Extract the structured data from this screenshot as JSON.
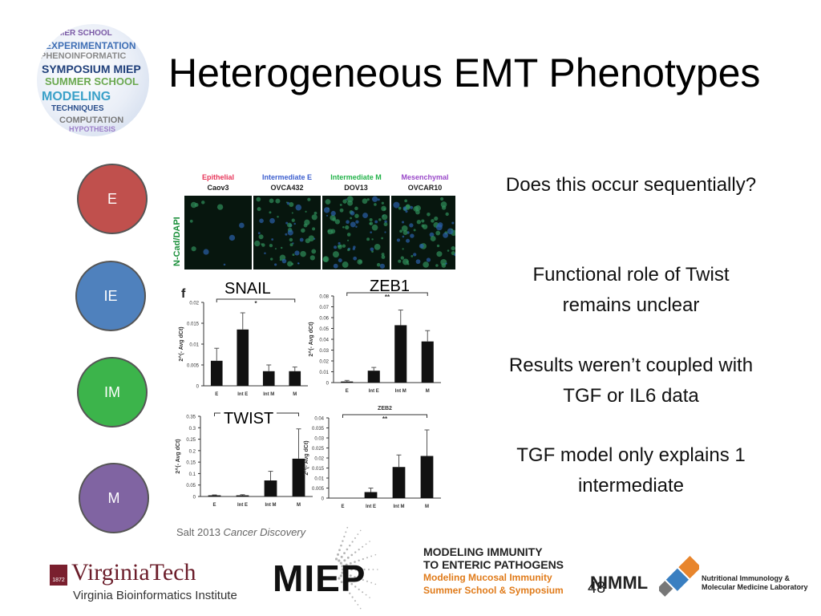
{
  "title": "Heterogeneous EMT Phenotypes",
  "globe_logo": {
    "words": [
      "MER SCHOOL",
      "EXPERIMENTATION",
      "PHENOINFORMATIC",
      "SYMPOSIUM MIEP",
      "SUMMER SCHOOL",
      "MODELING",
      "TECHNIQUES",
      "COMPUTATION",
      "HYPOTHESIS"
    ]
  },
  "states": [
    {
      "label": "E",
      "color": "#c0504d"
    },
    {
      "label": "IE",
      "color": "#4f81bd"
    },
    {
      "label": "IM",
      "color": "#3cb44b"
    },
    {
      "label": "M",
      "color": "#8064a2"
    }
  ],
  "microscopy": {
    "ylabel": "N-Cad/DAPI",
    "columns": [
      {
        "name": "Epithelial",
        "line": "Caov3",
        "color": "#e8365a"
      },
      {
        "name": "Intermediate E",
        "line": "OVCA432",
        "color": "#3d5fcf"
      },
      {
        "name": "Intermediate M",
        "line": "DOV13",
        "color": "#23b34a"
      },
      {
        "name": "Mesenchymal",
        "line": "OVCAR10",
        "color": "#9a49c9"
      }
    ]
  },
  "chart_data": [
    {
      "type": "bar",
      "title": "SNAIL",
      "panel_label": "f",
      "categories": [
        "E",
        "Int E",
        "Int M",
        "M"
      ],
      "values": [
        0.006,
        0.0135,
        0.0035,
        0.0035
      ],
      "errors": [
        0.003,
        0.004,
        0.0015,
        0.001
      ],
      "ylabel": "2^(- Avg dCt)",
      "ylim": [
        0,
        0.02
      ],
      "yticks": [
        "0",
        "0.005",
        "0.01",
        "0.015",
        "0.02"
      ],
      "significance": "*"
    },
    {
      "type": "bar",
      "title": "ZEB1",
      "categories": [
        "E",
        "Int E",
        "Int M",
        "M"
      ],
      "values": [
        0.001,
        0.011,
        0.053,
        0.038
      ],
      "errors": [
        0.001,
        0.003,
        0.014,
        0.01
      ],
      "ylabel": "2^(- Avg dCt)",
      "ylim": [
        0,
        0.08
      ],
      "yticks": [
        "0",
        "0.01",
        "0.02",
        "0.03",
        "0.04",
        "0.05",
        "0.06",
        "0.07",
        "0.08"
      ],
      "significance": "**"
    },
    {
      "type": "bar",
      "title": "TWIST",
      "categories": [
        "E",
        "Int E",
        "Int M",
        "M"
      ],
      "values": [
        0.005,
        0.005,
        0.07,
        0.165
      ],
      "errors": [
        0.002,
        0.003,
        0.04,
        0.13
      ],
      "ylabel": "2^(- Avg dCt)",
      "ylim": [
        0,
        0.35
      ],
      "yticks": [
        "0",
        "0.05",
        "0.1",
        "0.15",
        "0.2",
        "0.25",
        "0.3",
        "0.35"
      ],
      "significance": "*"
    },
    {
      "type": "bar",
      "title": "ZEB2",
      "categories": [
        "E",
        "Int E",
        "Int M",
        "M"
      ],
      "values": [
        0.0,
        0.003,
        0.0155,
        0.021
      ],
      "errors": [
        0.0,
        0.002,
        0.006,
        0.013
      ],
      "ylabel": "2^(- Avg dCt)",
      "ylim": [
        0,
        0.04
      ],
      "yticks": [
        "0",
        "0.005",
        "0.01",
        "0.015",
        "0.02",
        "0.025",
        "0.03",
        "0.035",
        "0.04"
      ],
      "significance": "**"
    }
  ],
  "chart_labels": {
    "snail": "SNAIL",
    "zeb1": "ZEB1",
    "twist": "TWIST"
  },
  "bullets": [
    "Does this occur sequentially?",
    "Functional role of Twist remains unclear",
    "Results weren’t coupled with TGF or IL6 data",
    "TGF model only explains 1 intermediate"
  ],
  "citation": {
    "prefix": "Salt 2013 ",
    "journal": "Cancer Discovery"
  },
  "footer": {
    "vt_name": "VirginiaTech",
    "vt_sub": "Virginia Bioinformatics Institute",
    "vt_year": "1872",
    "miep": "MIEP",
    "miep_line1": "MODELING IMMUNITY",
    "miep_line2": "TO ENTERIC PATHOGENS",
    "miep_line3": "Modeling Mucosal Immunity",
    "miep_line4": "Summer School & Symposium",
    "nimml": "NIMML",
    "nimml_line1": "Nutritional Immunology &",
    "nimml_line2": "Molecular Medicine Laboratory"
  },
  "page_number": "48"
}
